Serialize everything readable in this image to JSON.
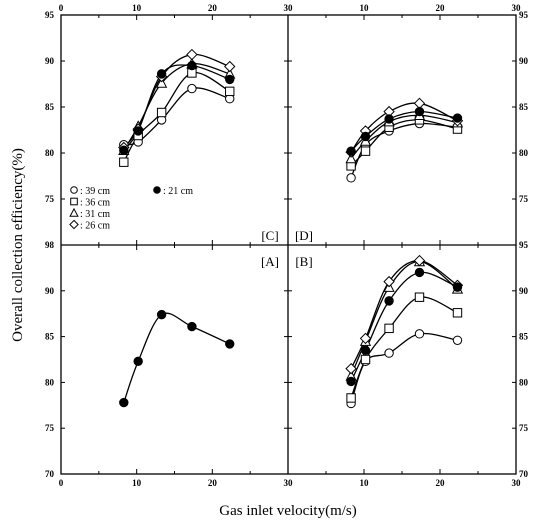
{
  "chart_data": {
    "type": "scatter",
    "xlabel": "Gas inlet velocity(m/s)",
    "ylabel": "Overall collection efficiency(%)",
    "x_ticks": {
      "bottom_left": [
        "0",
        "10",
        "20",
        "30"
      ],
      "bottom_right": [
        "10",
        "20",
        "30"
      ],
      "top_left": [
        "0",
        "10",
        "20",
        "30"
      ],
      "top_right": [
        "10",
        "20",
        "30"
      ]
    },
    "y_ticks": {
      "left": [
        "70",
        "75",
        "80",
        "85",
        "90",
        "95",
        "98",
        "80",
        "85",
        "90",
        "95"
      ],
      "right": [
        "70",
        "75",
        "80",
        "85",
        "90",
        "95",
        "75",
        "80",
        "85",
        "90",
        "95"
      ]
    },
    "xlim": [
      0,
      30
    ],
    "ylim": [
      70,
      95
    ],
    "grid": false,
    "legend_position": "lower-left of panel C",
    "legend": [
      {
        "marker": "circle-open",
        "label": ": 39 cm"
      },
      {
        "marker": "square-open",
        "label": ": 36 cm"
      },
      {
        "marker": "triangle-open",
        "label": ": 31 cm"
      },
      {
        "marker": "diamond-open",
        "label": ": 26 cm"
      },
      {
        "marker": "circle-filled",
        "label": ": 21 cm"
      }
    ],
    "panels": [
      {
        "label": "[A]",
        "series": [
          {
            "marker": "circle-filled",
            "x": [
              8.3,
              10.2,
              13.3,
              17.3,
              22.3
            ],
            "y": [
              77.8,
              82.3,
              87.4,
              86.1,
              84.2
            ]
          }
        ]
      },
      {
        "label": "[B]",
        "series": [
          {
            "marker": "circle-open",
            "x": [
              8.3,
              10.2,
              13.3,
              17.3,
              22.3
            ],
            "y": [
              77.7,
              82.3,
              83.2,
              85.3,
              84.6
            ]
          },
          {
            "marker": "square-open",
            "x": [
              8.3,
              10.2,
              13.3,
              17.3,
              22.3
            ],
            "y": [
              78.3,
              82.5,
              85.9,
              89.3,
              87.6
            ]
          },
          {
            "marker": "triangle-open",
            "x": [
              8.3,
              10.2,
              13.3,
              17.3,
              22.3
            ],
            "y": [
              80.7,
              84.5,
              90.4,
              93.2,
              90.2
            ]
          },
          {
            "marker": "diamond-open",
            "x": [
              8.3,
              10.2,
              13.3,
              17.3,
              22.3
            ],
            "y": [
              81.5,
              84.8,
              91.0,
              93.3,
              90.6
            ]
          },
          {
            "marker": "circle-filled",
            "x": [
              8.3,
              10.2,
              13.3,
              17.3,
              22.3
            ],
            "y": [
              80.1,
              83.5,
              88.9,
              92.0,
              90.4
            ]
          }
        ]
      },
      {
        "label": "[C]",
        "series": [
          {
            "marker": "circle-open",
            "x": [
              8.3,
              10.2,
              13.3,
              17.3,
              22.3
            ],
            "y": [
              80.9,
              81.2,
              83.6,
              87.0,
              85.9
            ]
          },
          {
            "marker": "square-open",
            "x": [
              8.3,
              10.2,
              13.3,
              17.3,
              22.3
            ],
            "y": [
              79.0,
              81.9,
              84.4,
              88.7,
              86.7
            ]
          },
          {
            "marker": "triangle-open",
            "x": [
              8.3,
              10.2,
              13.3,
              17.3,
              22.3
            ],
            "y": [
              80.3,
              82.9,
              87.6,
              89.7,
              88.6
            ]
          },
          {
            "marker": "diamond-open",
            "x": [
              8.3,
              10.2,
              13.3,
              17.3,
              22.3
            ],
            "y": [
              80.6,
              82.6,
              88.3,
              90.7,
              89.4
            ]
          },
          {
            "marker": "circle-filled",
            "x": [
              8.3,
              10.2,
              13.3,
              17.3,
              22.3
            ],
            "y": [
              80.3,
              82.4,
              88.6,
              89.5,
              88.0
            ]
          }
        ]
      },
      {
        "label": "[D]",
        "series": [
          {
            "marker": "circle-open",
            "x": [
              8.3,
              10.2,
              13.3,
              17.3,
              22.3
            ],
            "y": [
              77.3,
              80.9,
              82.4,
              83.2,
              82.8
            ]
          },
          {
            "marker": "square-open",
            "x": [
              8.3,
              10.2,
              13.3,
              17.3,
              22.3
            ],
            "y": [
              78.6,
              80.2,
              82.8,
              83.6,
              82.6
            ]
          },
          {
            "marker": "triangle-open",
            "x": [
              8.3,
              10.2,
              13.3,
              17.3,
              22.3
            ],
            "y": [
              79.4,
              81.3,
              83.4,
              84.1,
              83.3
            ]
          },
          {
            "marker": "diamond-open",
            "x": [
              8.3,
              10.2,
              13.3,
              17.3,
              22.3
            ],
            "y": [
              80.1,
              82.4,
              84.5,
              85.4,
              83.5
            ]
          },
          {
            "marker": "circle-filled",
            "x": [
              8.3,
              10.2,
              13.3,
              17.3,
              22.3
            ],
            "y": [
              80.2,
              81.8,
              83.7,
              84.5,
              83.8
            ]
          }
        ]
      }
    ]
  }
}
